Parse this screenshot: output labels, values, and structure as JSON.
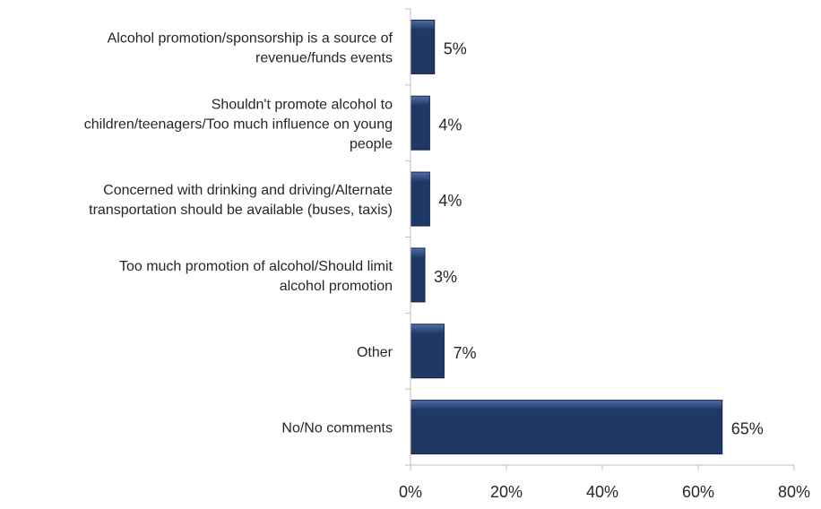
{
  "chart_data": {
    "type": "bar",
    "orientation": "horizontal",
    "categories": [
      "Alcohol promotion/sponsorship is a source of revenue/funds events",
      "Shouldn't promote alcohol to children/teenagers/Too much influence on young people",
      "Concerned with drinking and driving/Alternate transportation should be available (buses, taxis)",
      "Too much promotion of alcohol/Should limit alcohol promotion",
      "Other",
      "No/No comments"
    ],
    "category_label_lines": [
      [
        "Alcohol promotion/sponsorship is a source of",
        "revenue/funds events"
      ],
      [
        "Shouldn't promote alcohol to",
        "children/teenagers/Too much influence on young",
        "people"
      ],
      [
        "Concerned with drinking and driving/Alternate",
        "transportation should be available (buses, taxis)"
      ],
      [
        "Too much promotion of alcohol/Should limit",
        "alcohol promotion"
      ],
      [
        "Other"
      ],
      [
        "No/No comments"
      ]
    ],
    "values": [
      5,
      4,
      4,
      3,
      7,
      65
    ],
    "data_labels": [
      "5%",
      "4%",
      "4%",
      "3%",
      "7%",
      "65%"
    ],
    "xlim": [
      0,
      80
    ],
    "xticks": [
      0,
      20,
      40,
      60,
      80
    ],
    "xtick_labels": [
      "0%",
      "20%",
      "40%",
      "60%",
      "80%"
    ],
    "title": "",
    "xlabel": "",
    "ylabel": "",
    "grid": false,
    "legend": "none",
    "bar_color": "#1f3864",
    "bar_highlight_color": "#4f6fa8",
    "axis_color": "#bfbfbf",
    "text_color": "#262626"
  }
}
